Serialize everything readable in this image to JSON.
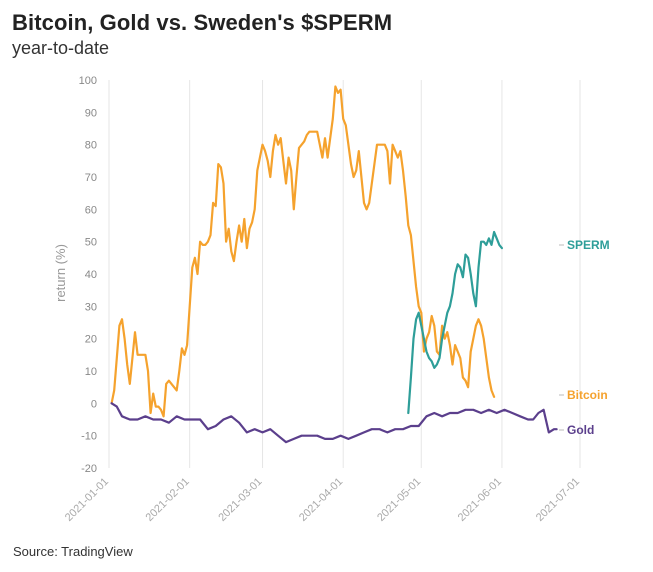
{
  "chart_data": {
    "type": "line",
    "title": "Bitcoin, Gold vs. Sweden's $SPERM",
    "subtitle": "year-to-date",
    "ylabel": "return (%)",
    "xlabel": "",
    "ylim": [
      -20,
      100
    ],
    "yticks": [
      -20,
      -10,
      0,
      10,
      20,
      30,
      40,
      50,
      60,
      70,
      80,
      90,
      100
    ],
    "xlim": [
      0,
      181
    ],
    "xticks": [
      {
        "label": "2021-01-01",
        "day": 0
      },
      {
        "label": "2021-02-01",
        "day": 31
      },
      {
        "label": "2021-03-01",
        "day": 59
      },
      {
        "label": "2021-04-01",
        "day": 90
      },
      {
        "label": "2021-05-01",
        "day": 120
      },
      {
        "label": "2021-06-01",
        "day": 151
      },
      {
        "label": "2021-07-01",
        "day": 181
      }
    ],
    "grid": "vertical",
    "series": [
      {
        "name": "Bitcoin",
        "color": "#f5a22d",
        "points": [
          [
            1,
            0
          ],
          [
            2,
            4
          ],
          [
            3,
            14
          ],
          [
            4,
            24
          ],
          [
            5,
            26
          ],
          [
            6,
            20
          ],
          [
            7,
            12
          ],
          [
            8,
            6
          ],
          [
            9,
            14
          ],
          [
            10,
            22
          ],
          [
            11,
            15
          ],
          [
            12,
            15
          ],
          [
            13,
            15
          ],
          [
            14,
            15
          ],
          [
            15,
            10
          ],
          [
            16,
            -3
          ],
          [
            17,
            3
          ],
          [
            18,
            -1
          ],
          [
            19,
            -1
          ],
          [
            20,
            -2
          ],
          [
            21,
            -4
          ],
          [
            22,
            6
          ],
          [
            23,
            7
          ],
          [
            24,
            6
          ],
          [
            25,
            5
          ],
          [
            26,
            4
          ],
          [
            27,
            10
          ],
          [
            28,
            17
          ],
          [
            29,
            15
          ],
          [
            30,
            18
          ],
          [
            31,
            30
          ],
          [
            32,
            42
          ],
          [
            33,
            45
          ],
          [
            34,
            40
          ],
          [
            35,
            50
          ],
          [
            36,
            49
          ],
          [
            37,
            49
          ],
          [
            38,
            50
          ],
          [
            39,
            52
          ],
          [
            40,
            62
          ],
          [
            41,
            61
          ],
          [
            42,
            74
          ],
          [
            43,
            73
          ],
          [
            44,
            68
          ],
          [
            45,
            50
          ],
          [
            46,
            54
          ],
          [
            47,
            47
          ],
          [
            48,
            44
          ],
          [
            49,
            50
          ],
          [
            50,
            55
          ],
          [
            51,
            50
          ],
          [
            52,
            57
          ],
          [
            53,
            48
          ],
          [
            54,
            54
          ],
          [
            55,
            56
          ],
          [
            56,
            60
          ],
          [
            57,
            72
          ],
          [
            58,
            76
          ],
          [
            59,
            80
          ],
          [
            60,
            78
          ],
          [
            61,
            75
          ],
          [
            62,
            70
          ],
          [
            63,
            78
          ],
          [
            64,
            83
          ],
          [
            65,
            80
          ],
          [
            66,
            82
          ],
          [
            67,
            75
          ],
          [
            68,
            68
          ],
          [
            69,
            76
          ],
          [
            70,
            72
          ],
          [
            71,
            60
          ],
          [
            72,
            70
          ],
          [
            73,
            79
          ],
          [
            74,
            80
          ],
          [
            75,
            81
          ],
          [
            76,
            83
          ],
          [
            77,
            84
          ],
          [
            78,
            84
          ],
          [
            79,
            84
          ],
          [
            80,
            84
          ],
          [
            81,
            80
          ],
          [
            82,
            76
          ],
          [
            83,
            82
          ],
          [
            84,
            76
          ],
          [
            85,
            82
          ],
          [
            86,
            88
          ],
          [
            87,
            98
          ],
          [
            88,
            96
          ],
          [
            89,
            97
          ],
          [
            90,
            88
          ],
          [
            91,
            86
          ],
          [
            92,
            80
          ],
          [
            93,
            74
          ],
          [
            94,
            70
          ],
          [
            95,
            72
          ],
          [
            96,
            78
          ],
          [
            97,
            70
          ],
          [
            98,
            62
          ],
          [
            99,
            60
          ],
          [
            100,
            62
          ],
          [
            101,
            68
          ],
          [
            102,
            74
          ],
          [
            103,
            80
          ],
          [
            104,
            80
          ],
          [
            105,
            80
          ],
          [
            106,
            80
          ],
          [
            107,
            78
          ],
          [
            108,
            68
          ],
          [
            109,
            80
          ],
          [
            110,
            78
          ],
          [
            111,
            76
          ],
          [
            112,
            78
          ],
          [
            113,
            72
          ],
          [
            114,
            64
          ],
          [
            115,
            55
          ],
          [
            116,
            52
          ],
          [
            117,
            44
          ],
          [
            118,
            36
          ],
          [
            119,
            30
          ],
          [
            120,
            28
          ],
          [
            121,
            16
          ],
          [
            122,
            20
          ],
          [
            123,
            22
          ],
          [
            124,
            27
          ],
          [
            125,
            24
          ],
          [
            126,
            16
          ],
          [
            127,
            15
          ],
          [
            128,
            24
          ],
          [
            129,
            20
          ],
          [
            130,
            22
          ],
          [
            131,
            18
          ],
          [
            132,
            12
          ],
          [
            133,
            18
          ],
          [
            134,
            16
          ],
          [
            135,
            14
          ],
          [
            136,
            8
          ],
          [
            137,
            7
          ],
          [
            138,
            5
          ],
          [
            139,
            16
          ],
          [
            140,
            20
          ],
          [
            141,
            24
          ],
          [
            142,
            26
          ],
          [
            143,
            24
          ],
          [
            144,
            20
          ],
          [
            145,
            14
          ],
          [
            146,
            8
          ],
          [
            147,
            4
          ],
          [
            148,
            2
          ]
        ]
      },
      {
        "name": "SPERM",
        "color": "#2e9e99",
        "points": [
          [
            115,
            -3
          ],
          [
            116,
            8
          ],
          [
            117,
            20
          ],
          [
            118,
            26
          ],
          [
            119,
            28
          ],
          [
            120,
            24
          ],
          [
            121,
            20
          ],
          [
            122,
            16
          ],
          [
            123,
            14
          ],
          [
            124,
            13
          ],
          [
            125,
            11
          ],
          [
            126,
            12
          ],
          [
            127,
            14
          ],
          [
            128,
            20
          ],
          [
            129,
            24
          ],
          [
            130,
            28
          ],
          [
            131,
            30
          ],
          [
            132,
            34
          ],
          [
            133,
            40
          ],
          [
            134,
            43
          ],
          [
            135,
            42
          ],
          [
            136,
            39
          ],
          [
            137,
            46
          ],
          [
            138,
            45
          ],
          [
            139,
            40
          ],
          [
            140,
            34
          ],
          [
            141,
            30
          ],
          [
            142,
            42
          ],
          [
            143,
            50
          ],
          [
            144,
            50
          ],
          [
            145,
            49
          ],
          [
            146,
            51
          ],
          [
            147,
            49
          ],
          [
            148,
            53
          ],
          [
            149,
            51
          ],
          [
            150,
            49
          ],
          [
            151,
            48
          ]
        ]
      },
      {
        "name": "Gold",
        "color": "#5b3f8c",
        "points": [
          [
            1,
            0
          ],
          [
            3,
            -1
          ],
          [
            5,
            -4
          ],
          [
            8,
            -5
          ],
          [
            11,
            -5
          ],
          [
            14,
            -4
          ],
          [
            17,
            -5
          ],
          [
            20,
            -5
          ],
          [
            23,
            -6
          ],
          [
            26,
            -4
          ],
          [
            29,
            -5
          ],
          [
            32,
            -5
          ],
          [
            35,
            -5
          ],
          [
            38,
            -8
          ],
          [
            41,
            -7
          ],
          [
            44,
            -5
          ],
          [
            47,
            -4
          ],
          [
            50,
            -6
          ],
          [
            53,
            -9
          ],
          [
            56,
            -8
          ],
          [
            59,
            -9
          ],
          [
            62,
            -8
          ],
          [
            65,
            -10
          ],
          [
            68,
            -12
          ],
          [
            71,
            -11
          ],
          [
            74,
            -10
          ],
          [
            77,
            -10
          ],
          [
            80,
            -10
          ],
          [
            83,
            -11
          ],
          [
            86,
            -11
          ],
          [
            89,
            -10
          ],
          [
            92,
            -11
          ],
          [
            95,
            -10
          ],
          [
            98,
            -9
          ],
          [
            101,
            -8
          ],
          [
            104,
            -8
          ],
          [
            107,
            -9
          ],
          [
            110,
            -8
          ],
          [
            113,
            -8
          ],
          [
            116,
            -7
          ],
          [
            119,
            -7
          ],
          [
            122,
            -4
          ],
          [
            125,
            -3
          ],
          [
            128,
            -4
          ],
          [
            131,
            -3
          ],
          [
            134,
            -3
          ],
          [
            137,
            -2
          ],
          [
            140,
            -2
          ],
          [
            143,
            -3
          ],
          [
            146,
            -2
          ],
          [
            149,
            -3
          ],
          [
            152,
            -2
          ],
          [
            155,
            -3
          ],
          [
            158,
            -4
          ],
          [
            161,
            -5
          ],
          [
            163,
            -5
          ],
          [
            165,
            -3
          ],
          [
            167,
            -2
          ],
          [
            169,
            -9
          ],
          [
            171,
            -8
          ],
          [
            172,
            -8
          ]
        ]
      }
    ],
    "labels": [
      {
        "series": "SPERM",
        "text": "SPERM"
      },
      {
        "series": "Bitcoin",
        "text": "Bitcoin"
      },
      {
        "series": "Gold",
        "text": "Gold"
      }
    ],
    "source": "Source: TradingView"
  }
}
